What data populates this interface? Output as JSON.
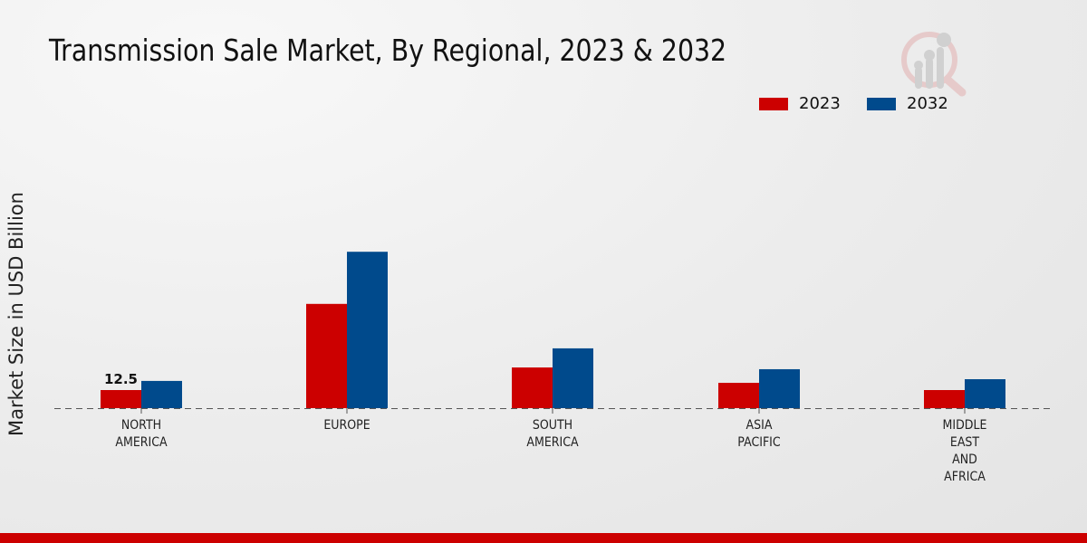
{
  "chart_data": {
    "type": "bar",
    "title": "Transmission Sale Market, By Regional, 2023 & 2032",
    "ylabel": "Market Size in USD Billion",
    "xlabel": "",
    "categories": [
      [
        "NORTH",
        "AMERICA"
      ],
      [
        "EUROPE"
      ],
      [
        "SOUTH",
        "AMERICA"
      ],
      [
        "ASIA",
        "PACIFIC"
      ],
      [
        "MIDDLE",
        "EAST",
        "AND",
        "AFRICA"
      ]
    ],
    "series": [
      {
        "name": "2023",
        "color": "#cc0000",
        "values": [
          12.5,
          72.0,
          28.1,
          17.5,
          12.5
        ]
      },
      {
        "name": "2032",
        "color": "#004a8c",
        "values": [
          18.8,
          108.0,
          41.3,
          26.9,
          20.0
        ]
      }
    ],
    "data_labels": [
      {
        "series": 0,
        "index": 0,
        "text": "12.5"
      }
    ],
    "ylim": [
      0,
      200
    ],
    "grid": false,
    "legend": "top-right"
  }
}
